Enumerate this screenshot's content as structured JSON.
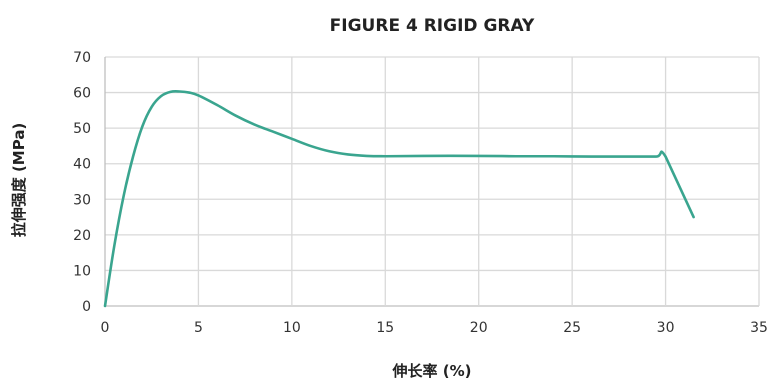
{
  "chart_data": {
    "type": "line",
    "title": "FIGURE 4 RIGID GRAY",
    "xlabel": "伸长率 (%)",
    "ylabel": "拉伸强度 (MPa)",
    "xlim": [
      0,
      35
    ],
    "ylim": [
      0,
      70
    ],
    "xticks": [
      0,
      5,
      10,
      15,
      20,
      25,
      30,
      35
    ],
    "yticks": [
      0,
      10,
      20,
      30,
      40,
      50,
      60,
      70
    ],
    "grid": true,
    "legend": "none",
    "series": [
      {
        "color": "#3aa58f",
        "x": [
          0,
          0.5,
          1.0,
          1.5,
          2.0,
          2.5,
          3.0,
          3.5,
          4.0,
          4.5,
          5.0,
          6.0,
          7.0,
          8.0,
          9.0,
          10.0,
          11.0,
          12.0,
          13.0,
          14.0,
          15.0,
          17.0,
          20.0,
          22.0,
          24.0,
          26.0,
          28.0,
          29.5,
          30.0,
          31.5
        ],
        "y": [
          0,
          17,
          31,
          42,
          50.5,
          56,
          59,
          60.2,
          60.3,
          60,
          59.2,
          56.5,
          53.5,
          51,
          49,
          47,
          45,
          43.5,
          42.6,
          42.2,
          42.1,
          42.2,
          42.2,
          42.1,
          42.1,
          42.0,
          42.0,
          42.0,
          42.0,
          25
        ]
      }
    ]
  }
}
